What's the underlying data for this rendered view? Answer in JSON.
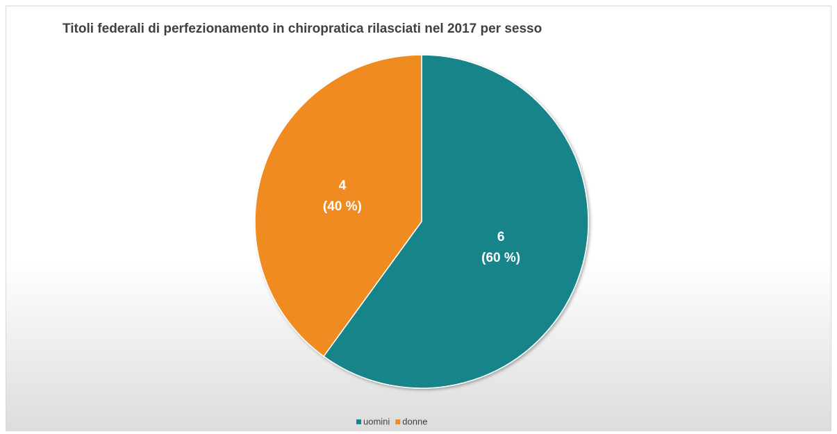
{
  "chart_data": {
    "type": "pie",
    "title": "Titoli federali di perfezionamento in chiropratica rilasciati nel 2017 per sesso",
    "categories": [
      "uomini",
      "donne"
    ],
    "values": [
      6,
      4
    ],
    "percentages": [
      60,
      40
    ],
    "percent_labels": [
      "(60 %)",
      "(40 %)"
    ],
    "colors": [
      "#168489",
      "#f08b21"
    ],
    "legend": "bottom"
  }
}
